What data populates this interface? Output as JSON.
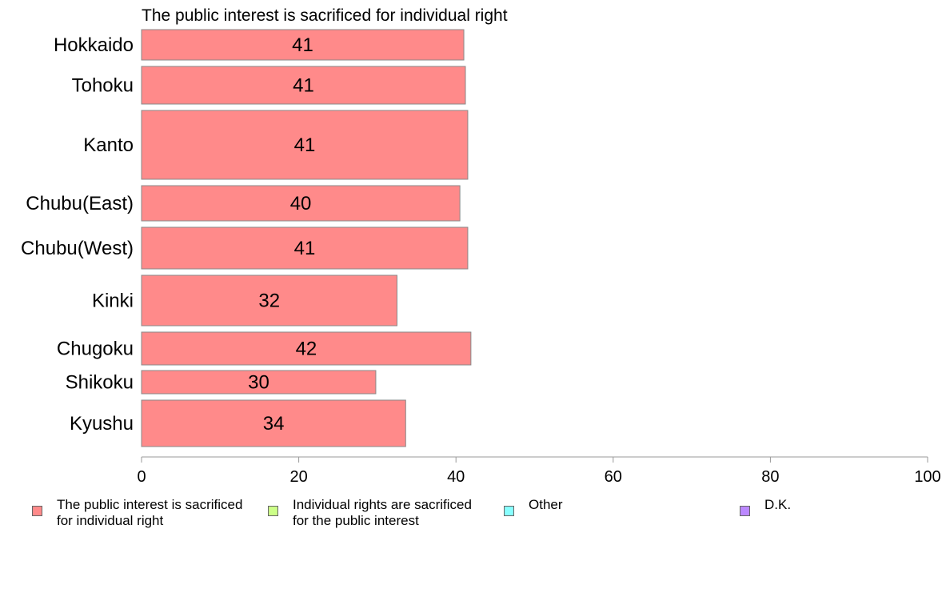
{
  "chart_data": {
    "type": "bar",
    "orientation": "horizontal",
    "title": "The public interest is sacrificed for individual right",
    "categories": [
      "Hokkaido",
      "Tohoku",
      "Kanto",
      "Chubu(East)",
      "Chubu(West)",
      "Kinki",
      "Chugoku",
      "Shikoku",
      "Kyushu"
    ],
    "series": [
      {
        "name": "The public interest is sacrificed for individual right",
        "color": "#ff8a8a",
        "values": [
          41,
          41.2,
          41.5,
          40.5,
          41.5,
          32.5,
          41.9,
          29.8,
          33.6
        ],
        "data_labels": [
          "41",
          "41",
          "41",
          "40",
          "41",
          "32",
          "42",
          "30",
          "34"
        ]
      }
    ],
    "xlim": [
      0,
      100
    ],
    "x_ticks": [
      "0",
      "20",
      "40",
      "60",
      "80",
      "100"
    ],
    "grid": false,
    "legend_position": "bottom"
  },
  "legend": [
    {
      "label": "The public interest is sacrificed\nfor individual right",
      "color": "#ff8a8a"
    },
    {
      "label": "Individual rights are sacrificed\nfor the public interest",
      "color": "#ccff88"
    },
    {
      "label": "Other",
      "color": "#88ffff"
    },
    {
      "label": "D.K.",
      "color": "#bb88ff"
    }
  ]
}
